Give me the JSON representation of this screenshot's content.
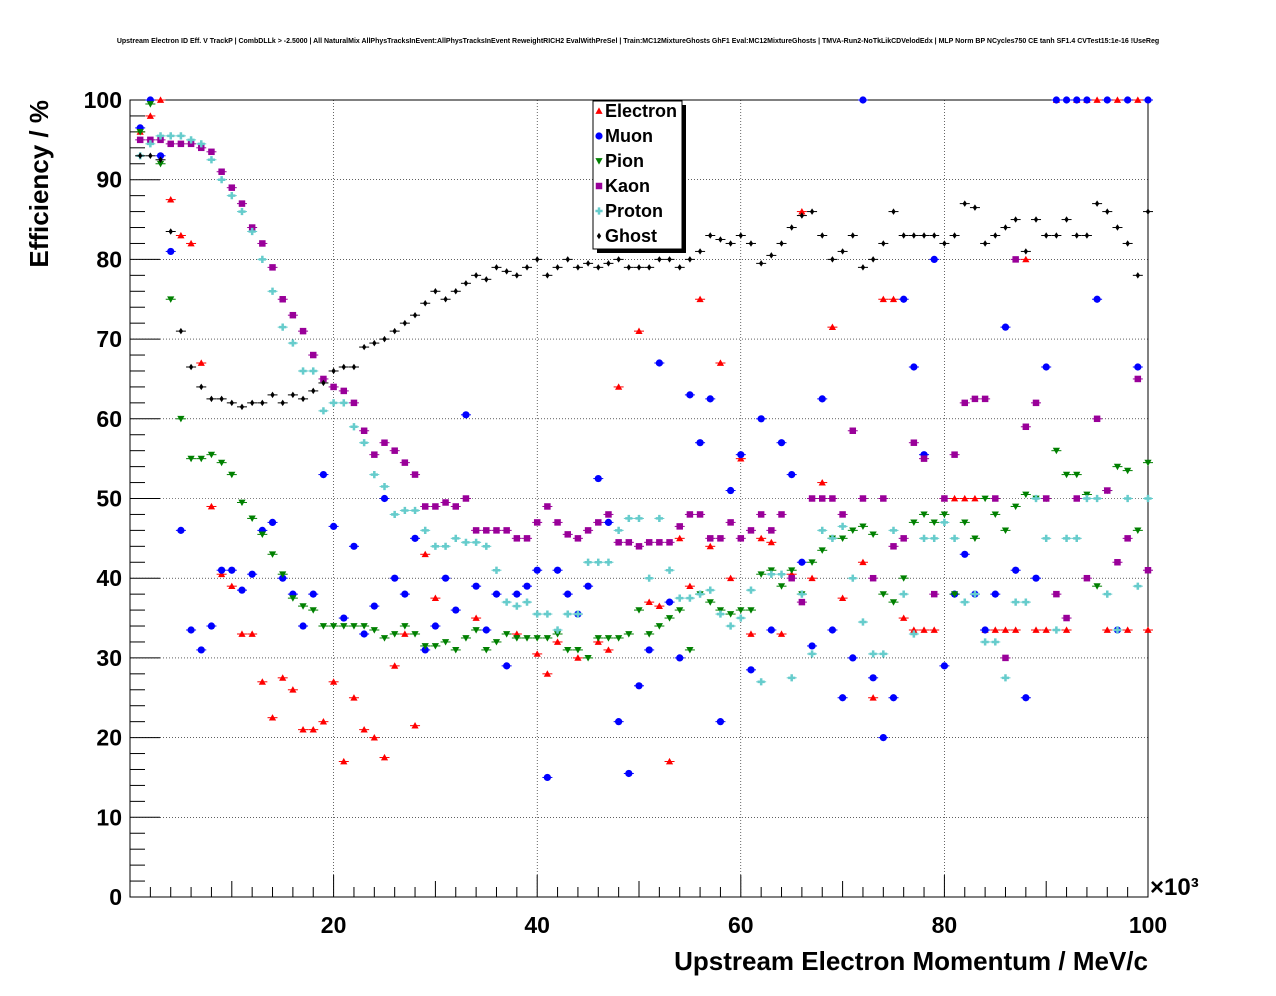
{
  "chart_data": {
    "type": "scatter",
    "title": "Upstream Electron ID Eff. V TrackP | CombDLLk > -2.5000 | All NaturalMix AllPhysTracksInEvent:AllPhysTracksInEvent ReweightRICH2 EvalWithPreSel | Train:MC12MixtureGhosts GhF1 Eval:MC12MixtureGhosts | TMVA-Run2-NoTkLikCDVelodEdx | MLP Norm BP NCycles750 CE tanh SF1.4 CVTest15:1e-16 !UseReg",
    "xlabel": "Upstream Electron Momentum / MeV/c",
    "ylabel": "Efficiency / %",
    "x_exponent_label": "×10³",
    "xlim": [
      0,
      100
    ],
    "ylim": [
      0,
      100
    ],
    "x_unit_scale": 1000,
    "xticks": [
      20,
      40,
      60,
      80,
      100
    ],
    "yticks": [
      0,
      10,
      20,
      30,
      40,
      50,
      60,
      70,
      80,
      90,
      100
    ],
    "grid": true,
    "legend_position": "top-center",
    "series": [
      {
        "name": "Electron",
        "color": "#ff0000",
        "marker": "triangle-up",
        "x": [
          1,
          2,
          3,
          4,
          5,
          6,
          7,
          8,
          9,
          10,
          11,
          12,
          13,
          14,
          15,
          16,
          17,
          18,
          19,
          20,
          21,
          22,
          23,
          24,
          25,
          26,
          27,
          28,
          29,
          30,
          34,
          38,
          40,
          41,
          42,
          44,
          46,
          47,
          48,
          50,
          51,
          52,
          53,
          54,
          55,
          56,
          57,
          58,
          59,
          60,
          61,
          62,
          63,
          64,
          65,
          66,
          67,
          68,
          69,
          70,
          72,
          73,
          74,
          75,
          76,
          77,
          78,
          79,
          80,
          81,
          82,
          83,
          84,
          85,
          86,
          87,
          88,
          89,
          90,
          91,
          92,
          93,
          94,
          95,
          96,
          97,
          98,
          99,
          100
        ],
        "y": [
          96,
          98,
          100,
          87.5,
          83,
          82,
          67,
          49,
          40.5,
          39,
          33,
          33,
          27,
          22.5,
          27.5,
          26,
          21,
          21,
          22,
          27,
          17,
          25,
          21,
          20,
          17.5,
          29,
          33,
          21.5,
          43,
          37.5,
          35,
          33,
          30.5,
          28,
          32,
          30,
          32,
          31,
          64,
          71,
          37,
          36.5,
          17,
          45,
          39,
          75,
          44,
          67,
          40,
          55,
          33,
          45,
          44.5,
          33,
          40.5,
          86,
          40,
          52,
          71.5,
          37.5,
          42,
          25,
          75,
          75,
          35,
          33.5,
          33.5,
          33.5,
          50,
          50,
          50,
          50,
          33.5,
          33.5,
          33.5,
          33.5,
          80,
          33.5,
          33.5,
          100,
          33.5,
          100,
          100,
          100,
          33.5,
          100,
          33.5,
          100,
          33.5
        ]
      },
      {
        "name": "Muon",
        "color": "#0000ff",
        "marker": "circle",
        "x": [
          1,
          2,
          3,
          4,
          5,
          6,
          7,
          8,
          9,
          10,
          11,
          12,
          13,
          14,
          15,
          16,
          17,
          18,
          19,
          20,
          21,
          22,
          23,
          24,
          25,
          26,
          27,
          28,
          29,
          30,
          31,
          32,
          33,
          34,
          35,
          36,
          37,
          38,
          39,
          40,
          41,
          42,
          43,
          44,
          45,
          46,
          47,
          48,
          49,
          50,
          51,
          52,
          53,
          54,
          55,
          56,
          57,
          58,
          59,
          60,
          61,
          62,
          63,
          64,
          65,
          66,
          67,
          68,
          69,
          70,
          71,
          72,
          73,
          74,
          75,
          76,
          77,
          78,
          79,
          80,
          81,
          82,
          83,
          84,
          85,
          86,
          87,
          88,
          89,
          90,
          91,
          92,
          93,
          94,
          95,
          96,
          97,
          98,
          99,
          100
        ],
        "y": [
          96.5,
          100,
          93,
          81,
          46,
          33.5,
          31,
          34,
          41,
          41,
          38.5,
          40.5,
          46,
          47,
          40,
          38,
          34,
          38,
          53,
          46.5,
          35,
          44,
          33,
          36.5,
          50,
          40,
          38,
          45,
          31,
          34,
          40,
          36,
          60.5,
          39,
          33.5,
          38,
          29,
          38,
          39,
          41,
          15,
          41,
          38,
          35.5,
          39,
          52.5,
          47,
          22,
          15.5,
          26.5,
          31,
          67,
          37,
          30,
          63,
          57,
          62.5,
          22,
          51,
          55.5,
          28.5,
          60,
          33.5,
          57,
          53,
          42,
          31.5,
          62.5,
          33.5,
          25,
          30,
          100,
          27.5,
          20,
          25,
          75,
          66.5,
          55.5,
          80,
          29,
          38,
          43,
          38,
          33.5,
          38,
          71.5,
          41,
          25,
          40,
          66.5,
          100,
          100,
          100,
          100,
          75,
          100,
          33.5,
          100,
          66.5,
          100
        ]
      },
      {
        "name": "Pion",
        "color": "#008000",
        "marker": "triangle-down",
        "x": [
          1,
          2,
          3,
          4,
          5,
          6,
          7,
          8,
          9,
          10,
          11,
          12,
          13,
          14,
          15,
          16,
          17,
          18,
          19,
          20,
          21,
          22,
          23,
          24,
          25,
          26,
          27,
          28,
          29,
          30,
          31,
          32,
          33,
          34,
          35,
          36,
          37,
          38,
          39,
          40,
          41,
          42,
          43,
          44,
          45,
          46,
          47,
          48,
          49,
          50,
          51,
          52,
          53,
          54,
          55,
          56,
          57,
          58,
          59,
          60,
          61,
          62,
          63,
          64,
          65,
          66,
          67,
          68,
          69,
          70,
          71,
          72,
          73,
          74,
          75,
          76,
          77,
          78,
          79,
          80,
          81,
          82,
          83,
          84,
          85,
          86,
          87,
          88,
          89,
          90,
          91,
          92,
          93,
          94,
          95,
          96,
          97,
          98,
          99,
          100
        ],
        "y": [
          96,
          99.5,
          92,
          75,
          60,
          55,
          55,
          55.5,
          54.5,
          53,
          49.5,
          47.5,
          45.5,
          43,
          40.5,
          37.5,
          36.5,
          36,
          34,
          34,
          34,
          34,
          34,
          33.5,
          32.5,
          33,
          34,
          33,
          31.5,
          31.5,
          32,
          31,
          32.5,
          33.5,
          31,
          32,
          33,
          32.5,
          32.5,
          32.5,
          32.5,
          33,
          31,
          31,
          30,
          32.5,
          32.5,
          32.5,
          33,
          36,
          33,
          34,
          35,
          36,
          31,
          38,
          37,
          36,
          35.5,
          36,
          36,
          40.5,
          41,
          39,
          41,
          38,
          42,
          43.5,
          45,
          45,
          46,
          46.5,
          45.5,
          38,
          37,
          40,
          47,
          48,
          47,
          48,
          38,
          47,
          45,
          50,
          48,
          46,
          49,
          50.5,
          50,
          50,
          56,
          53,
          53,
          50.5,
          39,
          51,
          54,
          53.5,
          46,
          54.5
        ]
      },
      {
        "name": "Kaon",
        "color": "#990099",
        "marker": "square",
        "x": [
          1,
          2,
          3,
          4,
          5,
          6,
          7,
          8,
          9,
          10,
          11,
          12,
          13,
          14,
          15,
          16,
          17,
          18,
          19,
          20,
          21,
          22,
          23,
          24,
          25,
          26,
          27,
          28,
          29,
          30,
          31,
          32,
          33,
          34,
          35,
          36,
          37,
          38,
          39,
          40,
          41,
          42,
          43,
          44,
          45,
          46,
          47,
          48,
          49,
          50,
          51,
          52,
          53,
          54,
          55,
          56,
          57,
          58,
          59,
          60,
          61,
          62,
          63,
          64,
          65,
          66,
          67,
          68,
          69,
          70,
          71,
          72,
          73,
          74,
          75,
          76,
          77,
          78,
          79,
          80,
          81,
          82,
          83,
          84,
          85,
          86,
          87,
          88,
          89,
          90,
          91,
          92,
          93,
          94,
          95,
          96,
          97,
          98,
          99,
          100
        ],
        "y": [
          95,
          95,
          95,
          94.5,
          94.5,
          94.5,
          94,
          93.5,
          91,
          89,
          87,
          84,
          82,
          79,
          75,
          73,
          71,
          68,
          65,
          64,
          63.5,
          62,
          58.5,
          55.5,
          57,
          56,
          54.5,
          53,
          49,
          49,
          49.5,
          49,
          50,
          46,
          46,
          46,
          46,
          45,
          45,
          47,
          49,
          47,
          45.5,
          45,
          46,
          47,
          48,
          44.5,
          44.5,
          44,
          44.5,
          44.5,
          44.5,
          46.5,
          48,
          48,
          45,
          45,
          47,
          45,
          46,
          48,
          46,
          48,
          40,
          37,
          50,
          50,
          50,
          48,
          58.5,
          50,
          40,
          50,
          44,
          45,
          57,
          55,
          38,
          50,
          55.5,
          62,
          62.5,
          62.5,
          50,
          30,
          80,
          59,
          62,
          50,
          38,
          35,
          50,
          40,
          60,
          51,
          42,
          45,
          65,
          41
        ]
      },
      {
        "name": "Proton",
        "color": "#66cccc",
        "marker": "cross",
        "x": [
          1,
          2,
          3,
          4,
          5,
          6,
          7,
          8,
          9,
          10,
          11,
          12,
          13,
          14,
          15,
          16,
          17,
          18,
          19,
          20,
          21,
          22,
          23,
          24,
          25,
          26,
          27,
          28,
          29,
          30,
          31,
          32,
          33,
          34,
          35,
          36,
          37,
          38,
          39,
          40,
          41,
          42,
          43,
          44,
          45,
          46,
          47,
          48,
          49,
          50,
          51,
          52,
          53,
          54,
          55,
          56,
          57,
          58,
          59,
          60,
          61,
          62,
          63,
          64,
          65,
          66,
          67,
          68,
          69,
          70,
          71,
          72,
          73,
          74,
          75,
          76,
          77,
          78,
          79,
          80,
          81,
          82,
          83,
          84,
          85,
          86,
          87,
          88,
          89,
          90,
          91,
          92,
          93,
          94,
          95,
          96,
          97,
          98,
          99,
          100
        ],
        "y": [
          93,
          94.5,
          95.5,
          95.5,
          95.5,
          95,
          94.5,
          92.5,
          90,
          88,
          86,
          83.5,
          80,
          76,
          71.5,
          69.5,
          66,
          66,
          61,
          62,
          62,
          59,
          57,
          53,
          51.5,
          48,
          48.5,
          48.5,
          46,
          44,
          44,
          45,
          44.5,
          44.5,
          44,
          41,
          37,
          36.5,
          37,
          35.5,
          35.5,
          33.5,
          35.5,
          35.5,
          42,
          42,
          42,
          46,
          47.5,
          47.5,
          40,
          47.5,
          41,
          37.5,
          37.5,
          38,
          38.5,
          35.5,
          34,
          35,
          38.5,
          27,
          40.5,
          40.5,
          27.5,
          38,
          30.5,
          46,
          45,
          46.5,
          40,
          34.5,
          30.5,
          30.5,
          46,
          38,
          33,
          45,
          45,
          47,
          45,
          37,
          38,
          32,
          32,
          27.5,
          37,
          37,
          50,
          45,
          33.5,
          45,
          45,
          50,
          50,
          38,
          33.5,
          50,
          39,
          50
        ]
      },
      {
        "name": "Ghost",
        "color": "#000000",
        "marker": "diamond",
        "x": [
          1,
          2,
          3,
          4,
          5,
          6,
          7,
          8,
          9,
          10,
          11,
          12,
          13,
          14,
          15,
          16,
          17,
          18,
          19,
          20,
          21,
          22,
          23,
          24,
          25,
          26,
          27,
          28,
          29,
          30,
          31,
          32,
          33,
          34,
          35,
          36,
          37,
          38,
          39,
          40,
          41,
          42,
          43,
          44,
          45,
          46,
          47,
          48,
          49,
          50,
          51,
          52,
          53,
          54,
          55,
          56,
          57,
          58,
          59,
          60,
          61,
          62,
          63,
          64,
          65,
          66,
          67,
          68,
          69,
          70,
          71,
          72,
          73,
          74,
          75,
          76,
          77,
          78,
          79,
          80,
          81,
          82,
          83,
          84,
          85,
          86,
          87,
          88,
          89,
          90,
          91,
          92,
          93,
          94,
          95,
          96,
          97,
          98,
          99,
          100
        ],
        "y": [
          93,
          93,
          92.5,
          83.5,
          71,
          66.5,
          64,
          62.5,
          62.5,
          62,
          61.5,
          62,
          62,
          63,
          62,
          63,
          62.5,
          63.5,
          64.5,
          66,
          66.5,
          66.5,
          69,
          69.5,
          70,
          71,
          72,
          73,
          74.5,
          76,
          75,
          76,
          77,
          78,
          77.5,
          79,
          78.5,
          78,
          79,
          80,
          78,
          79,
          80,
          79,
          79.5,
          79,
          79.5,
          80,
          79,
          79,
          79,
          80,
          80,
          79,
          80,
          81,
          83,
          82.5,
          82,
          83,
          82,
          79.5,
          80.5,
          82,
          84,
          85.5,
          86,
          83,
          80,
          81,
          83,
          79,
          80,
          82,
          86,
          83,
          83,
          83,
          83,
          82,
          83,
          87,
          86.5,
          82,
          83,
          84,
          85,
          81,
          85,
          83,
          83,
          85,
          83,
          83,
          87,
          86,
          84,
          82,
          78,
          86
        ]
      }
    ],
    "legend": [
      "Electron",
      "Muon",
      "Pion",
      "Kaon",
      "Proton",
      "Ghost"
    ]
  }
}
